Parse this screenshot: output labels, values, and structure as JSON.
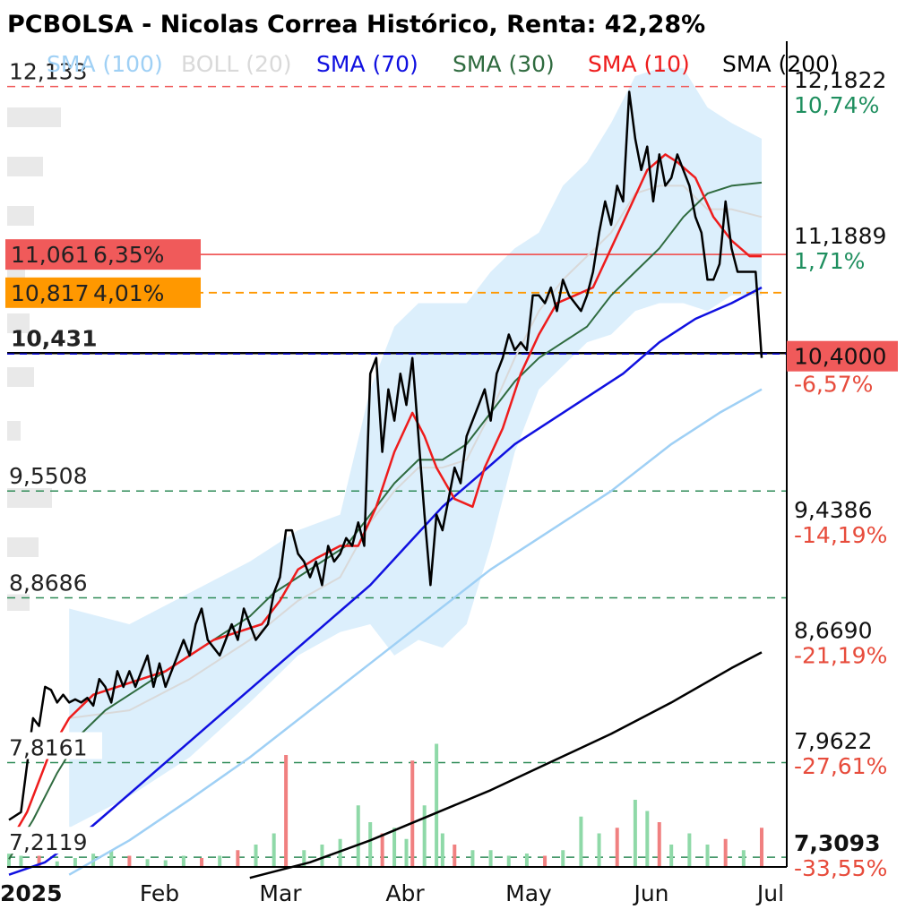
{
  "title": "PCBOLSA - Nicolas Correa Histórico, Renta: 42,28%",
  "colors": {
    "price": "#000000",
    "sma10": "#ee1c1c",
    "sma30": "#2f6b3f",
    "sma70": "#1010e0",
    "sma100": "#9fd0f5",
    "sma200": "#000000",
    "boll_band": "#d6ecfb",
    "boll_mid": "#d9d9d9",
    "level": "#2e8b57",
    "red": "#f05a5a",
    "orange": "#ff9800",
    "green_text": "#1f8f5f",
    "red_text": "#e74c3c"
  },
  "chart_data": {
    "type": "line",
    "title": "PCBOLSA - Nicolas Correa Histórico, Renta: 42,28%",
    "x_ticks": [
      "2025",
      "Feb",
      "Mar",
      "Abr",
      "May",
      "Jun",
      "Jul"
    ],
    "ylim": [
      7.15,
      12.4
    ],
    "legend": [
      {
        "name": "SMA (100)",
        "color": "#9fd0f5"
      },
      {
        "name": "BOLL (20)",
        "color": "#d9d9d9"
      },
      {
        "name": "SMA (70)",
        "color": "#1010e0"
      },
      {
        "name": "SMA (30)",
        "color": "#2f6b3f"
      },
      {
        "name": "SMA (10)",
        "color": "#ee1c1c"
      },
      {
        "name": "SMA (200)",
        "color": "#000000"
      }
    ],
    "left_levels": [
      {
        "value": 12.133,
        "label": "12,133",
        "color": "#f05a5a"
      },
      {
        "value": 9.5508,
        "label": "9,5508",
        "color": "#2e8b57"
      },
      {
        "value": 8.8686,
        "label": "8,8686",
        "color": "#2e8b57"
      },
      {
        "value": 7.8161,
        "label": "7,8161",
        "color": "#2e8b57"
      },
      {
        "value": 7.2119,
        "label": "7,2119",
        "color": "#2e8b57"
      }
    ],
    "support_line": {
      "value": 10.431,
      "label": "10,431"
    },
    "badges": [
      {
        "value": 11.061,
        "label": "11,061",
        "pct": "6,35%",
        "color": "#f05a5a"
      },
      {
        "value": 10.817,
        "label": "10,817",
        "pct": "4,01%",
        "color": "#ff9800"
      }
    ],
    "right_axis": [
      {
        "value": 12.1822,
        "label": "12,1822",
        "pct": "10,74%",
        "pct_color": "#1f8f5f"
      },
      {
        "value": 11.1889,
        "label": "11,1889",
        "pct": "1,71%",
        "pct_color": "#1f8f5f"
      },
      {
        "value": 9.4386,
        "label": "9,4386",
        "pct": "-14,19%",
        "pct_color": "#e74c3c"
      },
      {
        "value": 8.669,
        "label": "8,6690",
        "pct": "-21,19%",
        "pct_color": "#e74c3c"
      },
      {
        "value": 7.9622,
        "label": "7,9622",
        "pct": "-27,61%",
        "pct_color": "#e74c3c"
      },
      {
        "value": 7.3093,
        "label": "7,3093",
        "pct": "-33,55%",
        "pct_color": "#e74c3c"
      }
    ],
    "current": {
      "value": 10.4,
      "label": "10,4000",
      "pct": "-6,57%"
    },
    "x_index_range": [
      0,
      130
    ],
    "price": [
      [
        0,
        7.45
      ],
      [
        2,
        7.5
      ],
      [
        4,
        8.1
      ],
      [
        5,
        8.05
      ],
      [
        6,
        8.3
      ],
      [
        7,
        8.28
      ],
      [
        8,
        8.2
      ],
      [
        9,
        8.25
      ],
      [
        10,
        8.2
      ],
      [
        11,
        8.22
      ],
      [
        12,
        8.2
      ],
      [
        13,
        8.23
      ],
      [
        14,
        8.18
      ],
      [
        15,
        8.35
      ],
      [
        16,
        8.3
      ],
      [
        17,
        8.2
      ],
      [
        18,
        8.4
      ],
      [
        19,
        8.3
      ],
      [
        20,
        8.4
      ],
      [
        21,
        8.3
      ],
      [
        22,
        8.4
      ],
      [
        23,
        8.5
      ],
      [
        24,
        8.3
      ],
      [
        25,
        8.45
      ],
      [
        26,
        8.3
      ],
      [
        27,
        8.4
      ],
      [
        28,
        8.5
      ],
      [
        29,
        8.6
      ],
      [
        30,
        8.5
      ],
      [
        31,
        8.7
      ],
      [
        32,
        8.8
      ],
      [
        33,
        8.6
      ],
      [
        34,
        8.55
      ],
      [
        35,
        8.5
      ],
      [
        36,
        8.6
      ],
      [
        37,
        8.7
      ],
      [
        38,
        8.6
      ],
      [
        39,
        8.8
      ],
      [
        40,
        8.7
      ],
      [
        41,
        8.6
      ],
      [
        42,
        8.65
      ],
      [
        43,
        8.7
      ],
      [
        44,
        8.9
      ],
      [
        45,
        9.0
      ],
      [
        46,
        9.3
      ],
      [
        47,
        9.3
      ],
      [
        48,
        9.15
      ],
      [
        49,
        9.1
      ],
      [
        50,
        9.0
      ],
      [
        51,
        9.1
      ],
      [
        52,
        8.95
      ],
      [
        53,
        9.2
      ],
      [
        54,
        9.1
      ],
      [
        55,
        9.15
      ],
      [
        56,
        9.25
      ],
      [
        57,
        9.2
      ],
      [
        58,
        9.35
      ],
      [
        59,
        9.2
      ],
      [
        60,
        10.3
      ],
      [
        61,
        10.4
      ],
      [
        62,
        9.8
      ],
      [
        63,
        10.2
      ],
      [
        64,
        10.0
      ],
      [
        65,
        10.3
      ],
      [
        66,
        10.1
      ],
      [
        67,
        10.4
      ],
      [
        68,
        9.9
      ],
      [
        69,
        9.4
      ],
      [
        70,
        8.95
      ],
      [
        71,
        9.4
      ],
      [
        72,
        9.3
      ],
      [
        73,
        9.5
      ],
      [
        74,
        9.7
      ],
      [
        75,
        9.6
      ],
      [
        76,
        9.9
      ],
      [
        77,
        10.0
      ],
      [
        78,
        10.1
      ],
      [
        79,
        10.2
      ],
      [
        80,
        10.0
      ],
      [
        81,
        10.3
      ],
      [
        82,
        10.4
      ],
      [
        83,
        10.55
      ],
      [
        84,
        10.45
      ],
      [
        85,
        10.5
      ],
      [
        86,
        10.45
      ],
      [
        87,
        10.8
      ],
      [
        88,
        10.8
      ],
      [
        89,
        10.75
      ],
      [
        90,
        10.85
      ],
      [
        91,
        10.7
      ],
      [
        92,
        10.9
      ],
      [
        93,
        10.8
      ],
      [
        94,
        10.75
      ],
      [
        95,
        10.7
      ],
      [
        96,
        10.8
      ],
      [
        97,
        10.95
      ],
      [
        98,
        11.2
      ],
      [
        99,
        11.4
      ],
      [
        100,
        11.25
      ],
      [
        101,
        11.5
      ],
      [
        102,
        11.4
      ],
      [
        103,
        12.1
      ],
      [
        104,
        11.8
      ],
      [
        105,
        11.6
      ],
      [
        106,
        11.75
      ],
      [
        107,
        11.4
      ],
      [
        108,
        11.7
      ],
      [
        109,
        11.5
      ],
      [
        110,
        11.55
      ],
      [
        111,
        11.7
      ],
      [
        112,
        11.6
      ],
      [
        113,
        11.5
      ],
      [
        114,
        11.3
      ],
      [
        115,
        11.2
      ],
      [
        116,
        10.9
      ],
      [
        117,
        10.9
      ],
      [
        118,
        11.0
      ],
      [
        119,
        11.4
      ],
      [
        120,
        11.1
      ],
      [
        121,
        10.95
      ],
      [
        122,
        10.95
      ],
      [
        123,
        10.95
      ],
      [
        124,
        10.95
      ],
      [
        125,
        10.4
      ]
    ],
    "sma10": [
      [
        0,
        7.3
      ],
      [
        3,
        7.5
      ],
      [
        7,
        7.9
      ],
      [
        10,
        8.1
      ],
      [
        14,
        8.25
      ],
      [
        18,
        8.3
      ],
      [
        22,
        8.35
      ],
      [
        26,
        8.4
      ],
      [
        30,
        8.5
      ],
      [
        34,
        8.6
      ],
      [
        38,
        8.65
      ],
      [
        42,
        8.7
      ],
      [
        45,
        8.85
      ],
      [
        48,
        9.05
      ],
      [
        51,
        9.12
      ],
      [
        55,
        9.2
      ],
      [
        58,
        9.2
      ],
      [
        61,
        9.45
      ],
      [
        64,
        9.8
      ],
      [
        67,
        10.05
      ],
      [
        69,
        9.9
      ],
      [
        71,
        9.7
      ],
      [
        74,
        9.5
      ],
      [
        77,
        9.45
      ],
      [
        79,
        9.7
      ],
      [
        82,
        9.95
      ],
      [
        85,
        10.3
      ],
      [
        88,
        10.55
      ],
      [
        91,
        10.75
      ],
      [
        94,
        10.8
      ],
      [
        97,
        10.85
      ],
      [
        100,
        11.1
      ],
      [
        103,
        11.35
      ],
      [
        106,
        11.6
      ],
      [
        109,
        11.7
      ],
      [
        111,
        11.65
      ],
      [
        114,
        11.55
      ],
      [
        117,
        11.3
      ],
      [
        120,
        11.15
      ],
      [
        123,
        11.05
      ],
      [
        125,
        11.05
      ]
    ],
    "sma30": [
      [
        0,
        7.2
      ],
      [
        4,
        7.45
      ],
      [
        8,
        7.75
      ],
      [
        12,
        8.0
      ],
      [
        16,
        8.15
      ],
      [
        20,
        8.25
      ],
      [
        24,
        8.35
      ],
      [
        28,
        8.45
      ],
      [
        32,
        8.55
      ],
      [
        36,
        8.65
      ],
      [
        40,
        8.75
      ],
      [
        44,
        8.9
      ],
      [
        48,
        9.0
      ],
      [
        52,
        9.1
      ],
      [
        56,
        9.2
      ],
      [
        60,
        9.4
      ],
      [
        64,
        9.6
      ],
      [
        68,
        9.75
      ],
      [
        72,
        9.75
      ],
      [
        76,
        9.85
      ],
      [
        80,
        10.05
      ],
      [
        84,
        10.25
      ],
      [
        88,
        10.4
      ],
      [
        92,
        10.5
      ],
      [
        96,
        10.6
      ],
      [
        100,
        10.8
      ],
      [
        104,
        10.95
      ],
      [
        108,
        11.1
      ],
      [
        112,
        11.3
      ],
      [
        116,
        11.45
      ],
      [
        120,
        11.5
      ],
      [
        125,
        11.52
      ]
    ],
    "sma70": [
      [
        0,
        7.1
      ],
      [
        6,
        7.18
      ],
      [
        12,
        7.35
      ],
      [
        18,
        7.55
      ],
      [
        24,
        7.75
      ],
      [
        30,
        7.95
      ],
      [
        36,
        8.15
      ],
      [
        42,
        8.35
      ],
      [
        48,
        8.55
      ],
      [
        54,
        8.75
      ],
      [
        60,
        8.95
      ],
      [
        66,
        9.2
      ],
      [
        72,
        9.45
      ],
      [
        78,
        9.65
      ],
      [
        84,
        9.85
      ],
      [
        90,
        10.0
      ],
      [
        96,
        10.15
      ],
      [
        102,
        10.3
      ],
      [
        108,
        10.5
      ],
      [
        114,
        10.65
      ],
      [
        120,
        10.75
      ],
      [
        125,
        10.85
      ]
    ],
    "sma100": [
      [
        10,
        7.1
      ],
      [
        20,
        7.32
      ],
      [
        30,
        7.58
      ],
      [
        40,
        7.85
      ],
      [
        50,
        8.15
      ],
      [
        60,
        8.45
      ],
      [
        70,
        8.75
      ],
      [
        80,
        9.05
      ],
      [
        90,
        9.3
      ],
      [
        100,
        9.55
      ],
      [
        110,
        9.85
      ],
      [
        118,
        10.05
      ],
      [
        125,
        10.2
      ]
    ],
    "sma200": [
      [
        40,
        7.08
      ],
      [
        50,
        7.18
      ],
      [
        60,
        7.32
      ],
      [
        70,
        7.48
      ],
      [
        80,
        7.64
      ],
      [
        90,
        7.82
      ],
      [
        100,
        8.0
      ],
      [
        110,
        8.2
      ],
      [
        120,
        8.42
      ],
      [
        125,
        8.52
      ]
    ],
    "boll_upper": [
      [
        10,
        8.8
      ],
      [
        20,
        8.7
      ],
      [
        30,
        8.9
      ],
      [
        40,
        9.1
      ],
      [
        48,
        9.3
      ],
      [
        55,
        9.4
      ],
      [
        60,
        10.2
      ],
      [
        64,
        10.6
      ],
      [
        68,
        10.75
      ],
      [
        72,
        10.75
      ],
      [
        76,
        10.75
      ],
      [
        80,
        10.95
      ],
      [
        84,
        11.1
      ],
      [
        88,
        11.2
      ],
      [
        92,
        11.5
      ],
      [
        96,
        11.65
      ],
      [
        100,
        11.9
      ],
      [
        104,
        12.2
      ],
      [
        108,
        12.25
      ],
      [
        112,
        12.25
      ],
      [
        116,
        12.0
      ],
      [
        120,
        11.9
      ],
      [
        125,
        11.8
      ]
    ],
    "boll_lower": [
      [
        10,
        7.4
      ],
      [
        20,
        7.6
      ],
      [
        30,
        7.85
      ],
      [
        40,
        8.2
      ],
      [
        48,
        8.5
      ],
      [
        55,
        8.65
      ],
      [
        60,
        8.7
      ],
      [
        64,
        8.5
      ],
      [
        68,
        8.6
      ],
      [
        72,
        8.55
      ],
      [
        76,
        8.7
      ],
      [
        80,
        9.2
      ],
      [
        84,
        9.8
      ],
      [
        88,
        10.2
      ],
      [
        92,
        10.35
      ],
      [
        96,
        10.5
      ],
      [
        100,
        10.55
      ],
      [
        104,
        10.7
      ],
      [
        108,
        10.75
      ],
      [
        112,
        10.75
      ],
      [
        116,
        10.7
      ],
      [
        120,
        10.8
      ],
      [
        125,
        10.8
      ]
    ],
    "boll_mid": [
      [
        10,
        8.1
      ],
      [
        20,
        8.15
      ],
      [
        30,
        8.35
      ],
      [
        40,
        8.6
      ],
      [
        48,
        8.85
      ],
      [
        55,
        9.0
      ],
      [
        60,
        9.35
      ],
      [
        64,
        9.55
      ],
      [
        68,
        9.7
      ],
      [
        72,
        9.7
      ],
      [
        76,
        9.75
      ],
      [
        80,
        10.05
      ],
      [
        84,
        10.4
      ],
      [
        88,
        10.7
      ],
      [
        92,
        10.9
      ],
      [
        96,
        11.05
      ],
      [
        100,
        11.2
      ],
      [
        104,
        11.45
      ],
      [
        108,
        11.5
      ],
      [
        112,
        11.5
      ],
      [
        116,
        11.35
      ],
      [
        120,
        11.35
      ],
      [
        125,
        11.3
      ]
    ],
    "volume": [
      [
        0,
        0.15,
        "g"
      ],
      [
        2,
        0.1,
        "g"
      ],
      [
        5,
        0.1,
        "r"
      ],
      [
        8,
        0.05,
        "g"
      ],
      [
        11,
        0.08,
        "g"
      ],
      [
        14,
        0.12,
        "g"
      ],
      [
        17,
        0.15,
        "g"
      ],
      [
        20,
        0.1,
        "r"
      ],
      [
        23,
        0.07,
        "g"
      ],
      [
        26,
        0.06,
        "g"
      ],
      [
        29,
        0.1,
        "g"
      ],
      [
        32,
        0.08,
        "r"
      ],
      [
        35,
        0.1,
        "g"
      ],
      [
        38,
        0.15,
        "r"
      ],
      [
        41,
        0.2,
        "g"
      ],
      [
        44,
        0.3,
        "g"
      ],
      [
        46,
        1.0,
        "r"
      ],
      [
        49,
        0.15,
        "g"
      ],
      [
        52,
        0.2,
        "g"
      ],
      [
        55,
        0.25,
        "g"
      ],
      [
        58,
        0.55,
        "g"
      ],
      [
        60,
        0.4,
        "g"
      ],
      [
        62,
        0.3,
        "r"
      ],
      [
        64,
        0.35,
        "g"
      ],
      [
        66,
        0.25,
        "g"
      ],
      [
        67,
        0.95,
        "r"
      ],
      [
        69,
        0.55,
        "g"
      ],
      [
        71,
        1.1,
        "g"
      ],
      [
        72,
        0.3,
        "g"
      ],
      [
        74,
        0.2,
        "r"
      ],
      [
        77,
        0.15,
        "g"
      ],
      [
        80,
        0.15,
        "g"
      ],
      [
        83,
        0.1,
        "g"
      ],
      [
        86,
        0.12,
        "g"
      ],
      [
        89,
        0.1,
        "r"
      ],
      [
        92,
        0.15,
        "g"
      ],
      [
        95,
        0.45,
        "g"
      ],
      [
        98,
        0.3,
        "g"
      ],
      [
        101,
        0.35,
        "r"
      ],
      [
        104,
        0.6,
        "g"
      ],
      [
        106,
        0.5,
        "g"
      ],
      [
        108,
        0.4,
        "r"
      ],
      [
        110,
        0.2,
        "g"
      ],
      [
        113,
        0.3,
        "g"
      ],
      [
        116,
        0.2,
        "g"
      ],
      [
        119,
        0.25,
        "r"
      ],
      [
        122,
        0.15,
        "g"
      ],
      [
        125,
        0.35,
        "r"
      ]
    ]
  }
}
